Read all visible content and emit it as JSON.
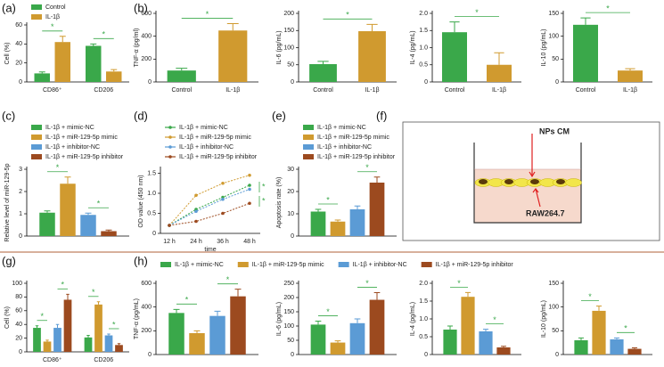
{
  "chart_data": [
    {
      "type": "bar",
      "panel": "(a)",
      "ylabel": "Cell (%)",
      "categories": [
        "CD86⁺",
        "CD206"
      ],
      "series": [
        {
          "name": "Control",
          "color": "#3aa84a",
          "values": [
            9,
            38
          ],
          "errors": [
            1.5,
            2
          ]
        },
        {
          "name": "IL-1β",
          "color": "#d09a2f",
          "values": [
            42,
            11
          ],
          "errors": [
            6,
            2
          ]
        }
      ],
      "ylim": [
        0,
        60
      ],
      "yticks": [
        0,
        20,
        40,
        60
      ],
      "annotations": [
        "*",
        "*"
      ]
    },
    {
      "type": "bar",
      "panel": "(b)",
      "ylabel": "TNF-α (pg/ml)",
      "categories": [
        "Control",
        "IL-1β"
      ],
      "values": [
        100,
        450
      ],
      "errors": [
        20,
        60
      ],
      "colors": [
        "#3aa84a",
        "#d09a2f"
      ],
      "ylim": [
        0,
        600
      ],
      "yticks": [
        0,
        200,
        400,
        600
      ],
      "annotations": [
        "*"
      ]
    },
    {
      "type": "bar",
      "ylabel": "IL-6 (pg/mL)",
      "categories": [
        "Control",
        "IL-1β"
      ],
      "values": [
        52,
        148
      ],
      "errors": [
        8,
        20
      ],
      "colors": [
        "#3aa84a",
        "#d09a2f"
      ],
      "ylim": [
        0,
        200
      ],
      "yticks": [
        0,
        50,
        100,
        150,
        200
      ],
      "annotations": [
        "*"
      ]
    },
    {
      "type": "bar",
      "ylabel": "IL-4 (pg/mL)",
      "categories": [
        "Control",
        "IL-1β"
      ],
      "values": [
        1.45,
        0.5
      ],
      "errors": [
        0.3,
        0.35
      ],
      "colors": [
        "#3aa84a",
        "#d09a2f"
      ],
      "ylim": [
        0,
        2
      ],
      "yticks": [
        0,
        0.5,
        {
          "value": 1,
          "label": "1.0"
        },
        1.5,
        {
          "value": 2,
          "label": "2.0"
        }
      ],
      "annotations": [
        "*"
      ]
    },
    {
      "type": "bar",
      "ylabel": "IL-10 (pg/mL)",
      "categories": [
        "Control",
        "IL-1β"
      ],
      "values": [
        125,
        25
      ],
      "errors": [
        15,
        4
      ],
      "colors": [
        "#3aa84a",
        "#d09a2f"
      ],
      "ylim": [
        0,
        150
      ],
      "yticks": [
        0,
        50,
        100,
        150
      ],
      "annotations": [
        "*"
      ]
    },
    {
      "type": "bar",
      "panel": "(c)",
      "ylabel": "Relative level of miR-129-5p",
      "categories": [
        null
      ],
      "series": [
        {
          "name": "IL-1β + mimic-NC",
          "color": "#3aa84a",
          "values": [
            1.05
          ],
          "errors": [
            0.08
          ]
        },
        {
          "name": "IL-1β + miR-129-5p mimic",
          "color": "#d09a2f",
          "values": [
            2.35
          ],
          "errors": [
            0.3
          ]
        },
        {
          "name": "IL-1β + inhibitor-NC",
          "color": "#5b9bd5",
          "values": [
            0.95
          ],
          "errors": [
            0.08
          ]
        },
        {
          "name": "IL-1β + miR-129-5p inhibitor",
          "color": "#9c4a1f",
          "values": [
            0.22
          ],
          "errors": [
            0.05
          ]
        }
      ],
      "ylim": [
        0,
        3
      ],
      "yticks": [
        0,
        1,
        2,
        3
      ],
      "annotations": [
        "*",
        "*"
      ]
    },
    {
      "type": "line",
      "panel": "(d)",
      "ylabel": "OD value (450 nm)",
      "xlabel": "time",
      "x": [
        "12 h",
        "24 h",
        "36 h",
        "48 h"
      ],
      "series": [
        {
          "name": "IL-1β + mimic-NC",
          "color": "#3aa84a",
          "values": [
            0.2,
            0.6,
            0.9,
            1.2
          ]
        },
        {
          "name": "IL-1β + miR-129-5p mimic",
          "color": "#d09a2f",
          "values": [
            0.2,
            0.95,
            1.25,
            1.45
          ]
        },
        {
          "name": "IL-1β + inhibitor-NC",
          "color": "#5b9bd5",
          "values": [
            0.2,
            0.55,
            0.85,
            1.1
          ]
        },
        {
          "name": "IL-1β + miR-129-5p inhibitor",
          "color": "#9c4a1f",
          "values": [
            0.2,
            0.3,
            0.5,
            0.75
          ]
        }
      ],
      "ylim": [
        0,
        1.6
      ],
      "yticks": [
        0,
        0.5,
        {
          "value": 1,
          "label": "1.0"
        },
        1.5
      ],
      "annotations": [
        "*",
        "*"
      ]
    },
    {
      "type": "bar",
      "panel": "(e)",
      "ylabel": "Apoptosis rate (%)",
      "categories": [
        null
      ],
      "series": [
        {
          "name": "IL-1β + mimic-NC",
          "color": "#3aa84a",
          "values": [
            11
          ],
          "errors": [
            1
          ]
        },
        {
          "name": "IL-1β + miR-129-5p mimic",
          "color": "#d09a2f",
          "values": [
            6.5
          ],
          "errors": [
            0.7
          ]
        },
        {
          "name": "IL-1β + inhibitor-NC",
          "color": "#5b9bd5",
          "values": [
            12
          ],
          "errors": [
            1.5
          ]
        },
        {
          "name": "IL-1β + miR-129-5p inhibitor",
          "color": "#9c4a1f",
          "values": [
            24
          ],
          "errors": [
            2.5
          ]
        }
      ],
      "ylim": [
        0,
        30
      ],
      "yticks": [
        0,
        10,
        20,
        30
      ],
      "annotations": [
        "*",
        "*"
      ]
    },
    {
      "type": "diagram",
      "panel": "(f)",
      "labels": [
        "NPs CM",
        "RAW264.7"
      ]
    },
    {
      "type": "bar",
      "panel": "(g)",
      "ylabel": "Cell (%)",
      "categories": [
        "CD86⁺",
        "CD206"
      ],
      "series": [
        {
          "color": "#3aa84a",
          "values": [
            35,
            21
          ],
          "errors": [
            3,
            3
          ]
        },
        {
          "color": "#d09a2f",
          "values": [
            15,
            69
          ],
          "errors": [
            2,
            4
          ]
        },
        {
          "color": "#5b9bd5",
          "values": [
            35,
            24
          ],
          "errors": [
            5,
            2
          ]
        },
        {
          "color": "#9c4a1f",
          "values": [
            76,
            10
          ],
          "errors": [
            8,
            2
          ]
        }
      ],
      "ylim": [
        0,
        100
      ],
      "yticks": [
        0,
        20,
        40,
        60,
        80,
        100
      ],
      "annotations": [
        "*",
        "*",
        "*",
        "*"
      ]
    },
    {
      "type": "bar",
      "panel": "(h)",
      "ylabel": "TNF-α (pg/mL)",
      "categories": [
        null
      ],
      "series": [
        {
          "name": "IL-1β + mimic-NC",
          "color": "#3aa84a",
          "values": [
            350
          ],
          "errors": [
            30
          ]
        },
        {
          "name": "IL-1β + miR-129-5p mimic",
          "color": "#d09a2f",
          "values": [
            180
          ],
          "errors": [
            20
          ]
        },
        {
          "name": "IL-1β + inhibitor-NC",
          "color": "#5b9bd5",
          "values": [
            325
          ],
          "errors": [
            40
          ]
        },
        {
          "name": "IL-1β + miR-129-5p inhibitor",
          "color": "#9c4a1f",
          "values": [
            490
          ],
          "errors": [
            60
          ]
        }
      ],
      "ylim": [
        0,
        600
      ],
      "yticks": [
        0,
        200,
        400,
        600
      ],
      "annotations": [
        "*",
        "*"
      ]
    },
    {
      "type": "bar",
      "ylabel": "IL-6 (pg/mL)",
      "categories": [
        null
      ],
      "series": [
        {
          "color": "#3aa84a",
          "values": [
            105
          ],
          "errors": [
            12
          ]
        },
        {
          "color": "#d09a2f",
          "values": [
            42
          ],
          "errors": [
            6
          ]
        },
        {
          "color": "#5b9bd5",
          "values": [
            110
          ],
          "errors": [
            15
          ]
        },
        {
          "color": "#9c4a1f",
          "values": [
            192
          ],
          "errors": [
            25
          ]
        }
      ],
      "ylim": [
        0,
        250
      ],
      "yticks": [
        0,
        50,
        100,
        150,
        200,
        250
      ],
      "annotations": [
        "*",
        "*"
      ]
    },
    {
      "type": "bar",
      "ylabel": "IL-4 (pg/mL)",
      "categories": [
        null
      ],
      "series": [
        {
          "color": "#3aa84a",
          "values": [
            0.7
          ],
          "errors": [
            0.1
          ]
        },
        {
          "color": "#d09a2f",
          "values": [
            1.62
          ],
          "errors": [
            0.12
          ]
        },
        {
          "color": "#5b9bd5",
          "values": [
            0.65
          ],
          "errors": [
            0.06
          ]
        },
        {
          "color": "#9c4a1f",
          "values": [
            0.2
          ],
          "errors": [
            0.03
          ]
        }
      ],
      "ylim": [
        0,
        2
      ],
      "yticks": [
        0,
        0.5,
        {
          "value": 1,
          "label": "1.0"
        },
        1.5,
        {
          "value": 2,
          "label": "2.0"
        }
      ],
      "annotations": [
        "*",
        "*"
      ]
    },
    {
      "type": "bar",
      "ylabel": "IL-10 (pg/mL)",
      "categories": [
        null
      ],
      "series": [
        {
          "color": "#3aa84a",
          "values": [
            30
          ],
          "errors": [
            5
          ]
        },
        {
          "color": "#d09a2f",
          "values": [
            92
          ],
          "errors": [
            10
          ]
        },
        {
          "color": "#5b9bd5",
          "values": [
            32
          ],
          "errors": [
            3
          ]
        },
        {
          "color": "#9c4a1f",
          "values": [
            12
          ],
          "errors": [
            2
          ]
        }
      ],
      "ylim": [
        0,
        150
      ],
      "yticks": [
        0,
        50,
        100,
        150
      ],
      "annotations": [
        "*",
        "*"
      ]
    }
  ]
}
